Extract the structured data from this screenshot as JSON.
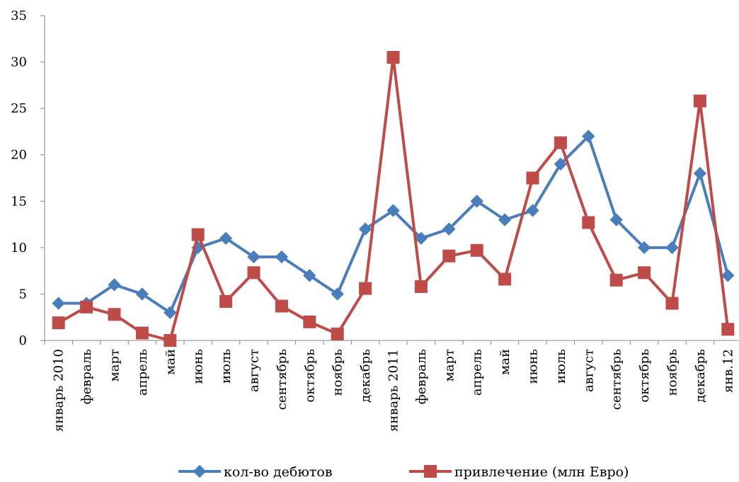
{
  "chart_data": {
    "type": "line",
    "categories": [
      "январь 2010",
      "февраль",
      "март",
      "апрель",
      "май",
      "июнь",
      "июль",
      "август",
      "сентябрь",
      "октябрь",
      "ноябрь",
      "декабрь",
      "январь 2011",
      "февраль",
      "март",
      "апрель",
      "май",
      "июнь",
      "июль",
      "август",
      "сентябрь",
      "октябрь",
      "ноябрь",
      "декабрь",
      "янв.12"
    ],
    "series": [
      {
        "name": "кол-во дебютов",
        "color": "#4a7ebb",
        "marker": "diamond",
        "values": [
          4,
          4,
          6,
          5,
          3,
          10,
          11,
          9,
          9,
          7,
          5,
          12,
          14,
          11,
          12,
          15,
          13,
          14,
          19,
          22,
          13,
          10,
          10,
          18,
          7
        ]
      },
      {
        "name": "привлечение (млн Евро)",
        "color": "#be4b48",
        "marker": "square",
        "values": [
          1.9,
          3.6,
          2.8,
          0.8,
          0.0,
          11.4,
          4.2,
          7.3,
          3.7,
          2.0,
          0.7,
          5.6,
          30.5,
          5.8,
          9.1,
          9.7,
          6.6,
          17.5,
          21.3,
          12.7,
          6.5,
          7.3,
          4.0,
          25.8,
          1.2
        ]
      }
    ],
    "yticks": [
      "0",
      "5",
      "10",
      "15",
      "20",
      "25",
      "30",
      "35"
    ],
    "ylim": [
      0,
      35
    ],
    "grid": false,
    "legend": "bottom"
  }
}
